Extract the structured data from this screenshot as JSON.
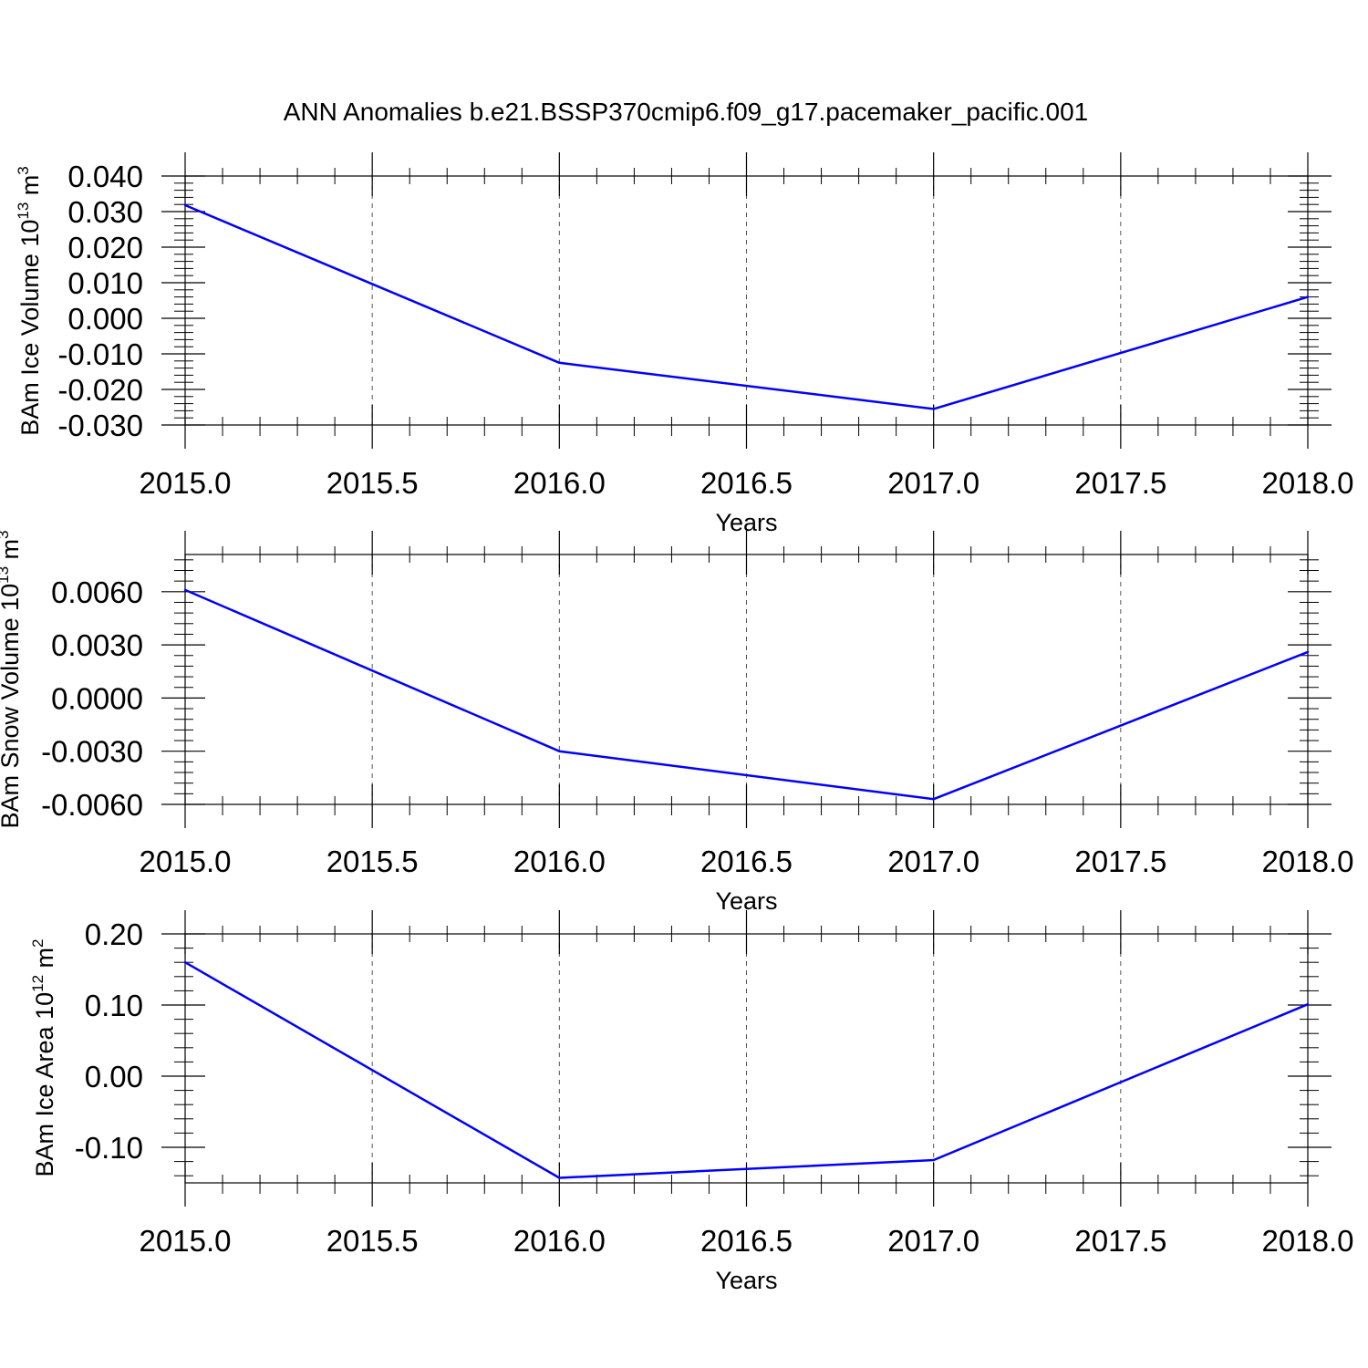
{
  "title": "ANN Anomalies b.e21.BSSP370cmip6.f09_g17.pacemaker_pacific.001",
  "colors": {
    "line": "#0000ff",
    "axis": "#000000",
    "grid": "#555555"
  },
  "chart_data": [
    {
      "type": "line",
      "xlabel": "Years",
      "ylabel": "BAm Ice Volume 10",
      "ylabel_sup": "13",
      "ylabel_unit": " m",
      "ylabel_unit_sup": "3",
      "xlim": [
        2015.0,
        2018.0
      ],
      "ylim": [
        -0.03,
        0.04
      ],
      "x_ticks": [
        "2015.0",
        "2015.5",
        "2016.0",
        "2016.5",
        "2017.0",
        "2017.5",
        "2018.0"
      ],
      "y_ticks": [
        "0.040",
        "0.030",
        "0.020",
        "0.010",
        "0.000",
        "-0.010",
        "-0.020",
        "-0.030"
      ],
      "y_tick_values": [
        0.04,
        0.03,
        0.02,
        0.01,
        0.0,
        -0.01,
        -0.02,
        -0.03
      ],
      "y_minor_step": 0.002,
      "grid": true,
      "x": [
        2015.0,
        2016.0,
        2017.0,
        2018.0
      ],
      "y": [
        0.0318,
        -0.0125,
        -0.0255,
        0.006
      ]
    },
    {
      "type": "line",
      "xlabel": "Years",
      "ylabel": "BAm Snow Volume 10",
      "ylabel_sup": "13",
      "ylabel_unit": " m",
      "ylabel_unit_sup": "3",
      "xlim": [
        2015.0,
        2018.0
      ],
      "ylim": [
        -0.006,
        0.0081
      ],
      "x_ticks": [
        "2015.0",
        "2015.5",
        "2016.0",
        "2016.5",
        "2017.0",
        "2017.5",
        "2018.0"
      ],
      "y_ticks": [
        "0.0060",
        "0.0030",
        "0.0000",
        "-0.0030",
        "-0.0060"
      ],
      "y_tick_values": [
        0.006,
        0.003,
        0.0,
        -0.003,
        -0.006
      ],
      "y_minor_step": 0.0006,
      "grid": true,
      "x": [
        2015.0,
        2016.0,
        2017.0,
        2018.0
      ],
      "y": [
        0.0061,
        -0.003,
        -0.0057,
        0.0026
      ]
    },
    {
      "type": "line",
      "xlabel": "Years",
      "ylabel": "BAm Ice Area 10",
      "ylabel_sup": "12",
      "ylabel_unit": " m",
      "ylabel_unit_sup": "2",
      "xlim": [
        2015.0,
        2018.0
      ],
      "ylim": [
        -0.15,
        0.2
      ],
      "x_ticks": [
        "2015.0",
        "2015.5",
        "2016.0",
        "2016.5",
        "2017.0",
        "2017.5",
        "2018.0"
      ],
      "y_ticks": [
        "0.20",
        "0.10",
        "0.00",
        "-0.10"
      ],
      "y_tick_values": [
        0.2,
        0.1,
        0.0,
        -0.1
      ],
      "y_minor_step": 0.02,
      "grid": true,
      "x": [
        2015.0,
        2016.0,
        2017.0,
        2018.0
      ],
      "y": [
        0.16,
        -0.143,
        -0.118,
        0.101
      ]
    }
  ]
}
